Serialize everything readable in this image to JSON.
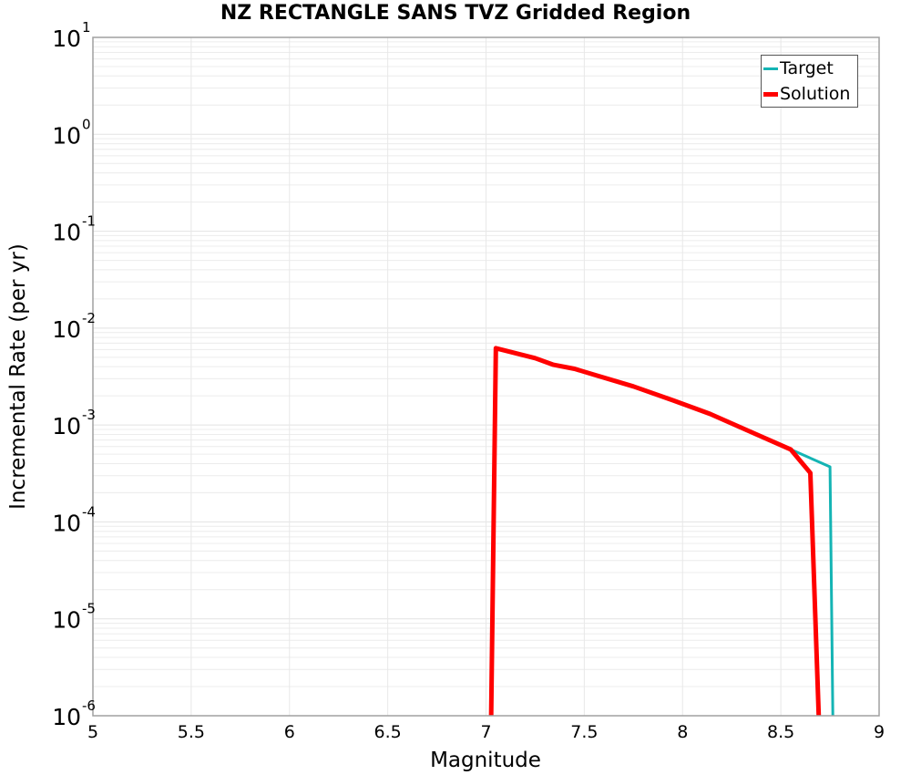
{
  "chart_data": {
    "type": "line",
    "title": "NZ RECTANGLE SANS TVZ Gridded Region",
    "xlabel": "Magnitude",
    "ylabel": "Incremental Rate (per yr)",
    "xlim": [
      5,
      9
    ],
    "ylim": [
      1e-06,
      10
    ],
    "yscale": "log",
    "grid": true,
    "legend_position": "upper right",
    "x_ticks": [
      "5",
      "5.5",
      "6",
      "6.5",
      "7",
      "7.5",
      "8",
      "8.5",
      "9"
    ],
    "y_ticks": [
      {
        "base": "10",
        "exp": "1"
      },
      {
        "base": "10",
        "exp": "0"
      },
      {
        "base": "10",
        "exp": "-1"
      },
      {
        "base": "10",
        "exp": "-2"
      },
      {
        "base": "10",
        "exp": "-3"
      },
      {
        "base": "10",
        "exp": "-4"
      },
      {
        "base": "10",
        "exp": "-5"
      },
      {
        "base": "10",
        "exp": "-6"
      }
    ],
    "series": [
      {
        "name": "Target",
        "color": "#14b4b4",
        "line_width": 3,
        "points": [
          [
            7.02,
            1e-07
          ],
          [
            7.05,
            0.0062
          ],
          [
            7.25,
            0.0049
          ],
          [
            7.34,
            0.0042
          ],
          [
            7.45,
            0.0038
          ],
          [
            7.55,
            0.0033
          ],
          [
            7.75,
            0.0025
          ],
          [
            7.95,
            0.0018
          ],
          [
            8.14,
            0.0013
          ],
          [
            8.37,
            0.00081
          ],
          [
            8.55,
            0.00056
          ],
          [
            8.75,
            0.00037
          ],
          [
            8.77,
            1e-07
          ]
        ]
      },
      {
        "name": "Solution",
        "color": "#ff0000",
        "line_width": 5,
        "points": [
          [
            7.02,
            1e-07
          ],
          [
            7.05,
            0.0062
          ],
          [
            7.25,
            0.0049
          ],
          [
            7.34,
            0.0042
          ],
          [
            7.45,
            0.0038
          ],
          [
            7.55,
            0.0033
          ],
          [
            7.75,
            0.0025
          ],
          [
            7.95,
            0.0018
          ],
          [
            8.14,
            0.0013
          ],
          [
            8.37,
            0.00081
          ],
          [
            8.55,
            0.00056
          ],
          [
            8.65,
            0.00032
          ],
          [
            8.71,
            1e-07
          ]
        ]
      }
    ]
  },
  "legend": {
    "items": [
      {
        "label": "Target",
        "color": "#14b4b4"
      },
      {
        "label": "Solution",
        "color": "#ff0000"
      }
    ]
  }
}
